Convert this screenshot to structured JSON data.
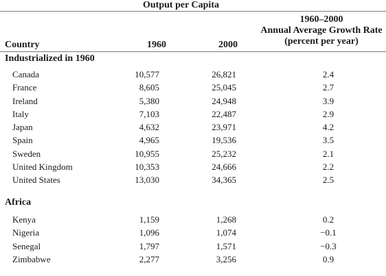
{
  "table": {
    "super_title": "Output per Capita",
    "growth_header": {
      "line1": "1960–2000",
      "line2": "Annual Average Growth Rate",
      "line3": "(percent per year)"
    },
    "columns": {
      "country": "Country",
      "y1960": "1960",
      "y2000": "2000"
    },
    "sections": [
      {
        "title": "Industrialized in 1960",
        "rows": [
          {
            "country": "Canada",
            "y1960": "10,577",
            "y2000": "26,821",
            "rate": "2.4"
          },
          {
            "country": "France",
            "y1960": "8,605",
            "y2000": "25,045",
            "rate": "2.7"
          },
          {
            "country": "Ireland",
            "y1960": "5,380",
            "y2000": "24,948",
            "rate": "3.9"
          },
          {
            "country": "Italy",
            "y1960": "7,103",
            "y2000": "22,487",
            "rate": "2.9"
          },
          {
            "country": "Japan",
            "y1960": "4,632",
            "y2000": "23,971",
            "rate": "4.2"
          },
          {
            "country": "Spain",
            "y1960": "4,965",
            "y2000": "19,536",
            "rate": "3.5"
          },
          {
            "country": "Sweden",
            "y1960": "10,955",
            "y2000": "25,232",
            "rate": "2.1"
          },
          {
            "country": "United Kingdom",
            "y1960": "10,353",
            "y2000": "24,666",
            "rate": "2.2"
          },
          {
            "country": "United States",
            "y1960": "13,030",
            "y2000": "34,365",
            "rate": "2.5"
          }
        ]
      },
      {
        "title": "Africa",
        "rows": [
          {
            "country": "Kenya",
            "y1960": "1,159",
            "y2000": "1,268",
            "rate": "0.2"
          },
          {
            "country": "Nigeria",
            "y1960": "1,096",
            "y2000": "1,074",
            "rate": "−0.1"
          },
          {
            "country": "Senegal",
            "y1960": "1,797",
            "y2000": "1,571",
            "rate": "−0.3"
          },
          {
            "country": "Zimbabwe",
            "y1960": "2,277",
            "y2000": "3,256",
            "rate": "0.9"
          }
        ]
      }
    ]
  }
}
